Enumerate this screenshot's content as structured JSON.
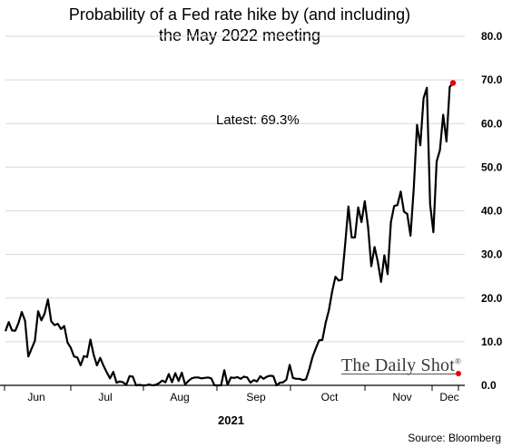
{
  "chart_data": {
    "type": "line",
    "title": "Probability of a Fed rate hike by (and including)",
    "subtitle": "the May 2022 meeting",
    "annotation": "Latest:  69.3%",
    "year_label": "2021",
    "source": "Source: Bloomberg",
    "watermark": "The Daily Shot",
    "watermark_mark": "®",
    "ylim": [
      0,
      80
    ],
    "yticks": [
      "0.0",
      "10.0",
      "20.0",
      "30.0",
      "40.0",
      "50.0",
      "60.0",
      "70.0",
      "80.0"
    ],
    "month_labels": [
      "Jun",
      "Jul",
      "Aug",
      "Sep",
      "Oct",
      "Nov",
      "Dec"
    ],
    "grid": true,
    "line_color": "#000000",
    "last_point_color": "#e8000b",
    "series": [
      {
        "values": [
          12.4,
          14.5,
          12.6,
          12.5,
          14.3,
          16.8,
          14.8,
          6.6,
          8.4,
          10.2,
          17.0,
          14.9,
          16.5,
          19.7,
          14.7,
          13.8,
          14.1,
          12.9,
          13.6,
          9.8,
          8.6,
          6.6,
          6.4,
          4.6,
          6.7,
          6.5,
          10.5,
          7.0,
          4.6,
          6.3,
          4.5,
          3.0,
          1.6,
          3.1,
          0.6,
          0.9,
          0.7,
          0.1,
          2.1,
          2.0,
          0.0,
          0.1,
          0.0,
          0.0,
          0.2,
          0.0,
          0.1,
          0.5,
          1.1,
          0.7,
          2.6,
          0.7,
          2.8,
          1.0,
          2.9,
          0.2,
          1.0,
          1.6,
          1.8,
          1.8,
          1.6,
          1.7,
          1.8,
          1.6,
          0.0,
          0.0,
          0.0,
          3.5,
          0.1,
          1.8,
          1.7,
          1.9,
          1.5,
          2.0,
          1.8,
          0.6,
          1.2,
          0.9,
          2.1,
          1.5,
          2.0,
          2.2,
          2.1,
          0.0,
          0.6,
          0.7,
          1.3,
          4.7,
          1.7,
          1.5,
          1.5,
          1.2,
          1.4,
          3.7,
          6.5,
          8.5,
          10.3,
          10.4,
          14.3,
          17.2,
          21.5,
          24.9,
          24.0,
          24.2,
          32.3,
          41.0,
          33.9,
          33.9,
          40.8,
          37.4,
          42.2,
          36.4,
          27.3,
          31.7,
          28.3,
          23.7,
          29.8,
          25.5,
          37.4,
          41.1,
          41.3,
          44.4,
          39.8,
          39.3,
          34.3,
          45.2,
          59.7,
          55.0,
          65.8,
          68.2,
          41.5,
          35.1,
          51.3,
          53.9,
          62.0,
          55.9,
          68.4,
          69.3
        ]
      }
    ]
  }
}
